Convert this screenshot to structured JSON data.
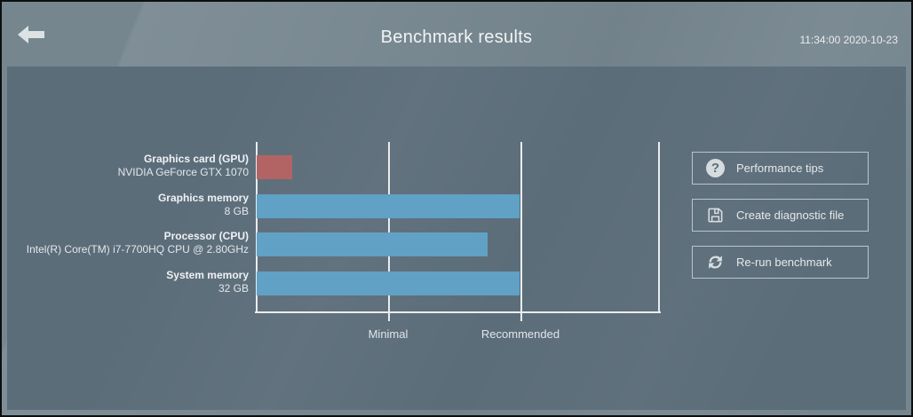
{
  "header": {
    "title": "Benchmark results",
    "timestamp": "11:34:00 2020-10-23"
  },
  "chart_data": {
    "type": "bar",
    "orientation": "horizontal",
    "title": "",
    "axis": {
      "min": 0,
      "max": 1.52,
      "unit": "relative (Recommended = 1.0)",
      "grid": true,
      "marks": [
        {
          "label": "Minimal",
          "value": 0.5
        },
        {
          "label": "Recommended",
          "value": 1.0
        }
      ]
    },
    "rows": [
      {
        "label": "Graphics card (GPU)",
        "sublabel": "NVIDIA GeForce GTX 1070",
        "value": 0.14,
        "color": "#b26464",
        "status": "below_minimal"
      },
      {
        "label": "Graphics memory",
        "sublabel": "8 GB",
        "value": 1.0,
        "color": "#60a1c5",
        "status": "meets_recommended"
      },
      {
        "label": "Processor (CPU)",
        "sublabel": "Intel(R) Core(TM) i7-7700HQ CPU @ 2.80GHz",
        "value": 0.88,
        "color": "#60a1c5",
        "status": "above_minimal"
      },
      {
        "label": "System memory",
        "sublabel": "32 GB",
        "value": 1.0,
        "color": "#60a1c5",
        "status": "meets_recommended"
      }
    ]
  },
  "actions": [
    {
      "label": "Performance tips",
      "icon": "question-icon",
      "glyph": "?"
    },
    {
      "label": "Create diagnostic file",
      "icon": "save-icon"
    },
    {
      "label": "Re-run benchmark",
      "icon": "refresh-icon"
    }
  ],
  "colors": {
    "header_bg": "#76868f",
    "panel_bg": "#5c6d7a",
    "axis_line": "#e9ecee",
    "bar_blue": "#60a1c5",
    "bar_red": "#b26464",
    "button_border": "#bcc5ca",
    "text_light": "#eef2f4"
  }
}
